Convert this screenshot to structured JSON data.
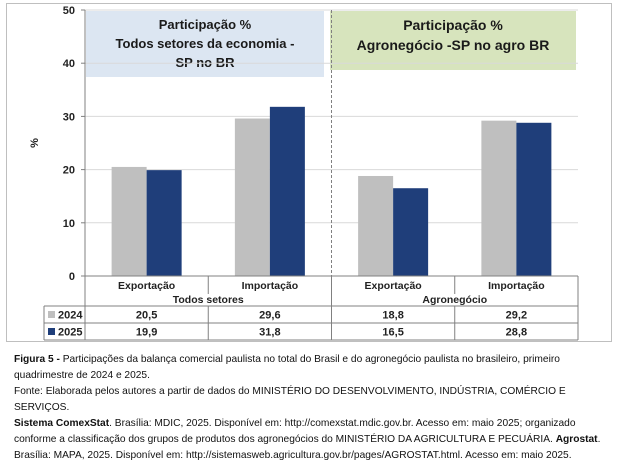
{
  "chart_data": {
    "type": "bar",
    "ylabel": "%",
    "ylim": [
      0,
      50
    ],
    "yticks": [
      0,
      10,
      20,
      30,
      40,
      50
    ],
    "grid": true,
    "groups": [
      {
        "name": "Todos setores",
        "panel_title_1": "Participação %",
        "panel_title_2": "Todos setores da economia -",
        "panel_title_3": "SP no BR",
        "panel_color": "#dce6f2"
      },
      {
        "name": "Agronegócio",
        "panel_title_1": "Participação %",
        "panel_title_2": "Agronegócio -SP  no  agro BR",
        "panel_title_3": "",
        "panel_color": "#d7e4bd"
      }
    ],
    "categories": [
      "Exportação",
      "Importação",
      "Exportação",
      "Importação"
    ],
    "series": [
      {
        "name": "2024",
        "color": "#bfbfbf",
        "values": [
          20.5,
          29.6,
          18.8,
          29.2
        ]
      },
      {
        "name": "2025",
        "color": "#1f3e7a",
        "values": [
          19.9,
          31.8,
          16.5,
          28.8
        ]
      }
    ],
    "table_values": {
      "2024": [
        "20,5",
        "29,6",
        "18,8",
        "29,2"
      ],
      "2025": [
        "19,9",
        "31,8",
        "16,5",
        "28,8"
      ]
    }
  },
  "caption": {
    "figure_label": "Figura 5 -",
    "figure_text": " Participações da balança comercial paulista no total do Brasil e do agronegócio paulista no brasileiro, primeiro quadrimestre de 2024 e 2025.",
    "source_1": "Fonte: Elaborada pelos autores a partir de dados do MINISTÉRIO DO DESENVOLVIMENTO, INDÚSTRIA, COMÉRCIO E SERVIÇOS.",
    "source_2_bold": "Sistema ComexStat",
    "source_2": ". Brasília: MDIC, 2025. Disponível em: http://comexstat.mdic.gov.br. Acesso em: maio 2025; organizado conforme a classificação dos grupos de produtos dos agronegócios do MINISTÉRIO DA AGRICULTURA E PECUÁRIA. ",
    "source_3_bold": "Agrostat",
    "source_3": ". Brasília: MAPA, 2025. Disponível em: http://sistemasweb.agricultura.gov.br/pages/AGROSTAT.html. Acesso em: maio 2025."
  }
}
